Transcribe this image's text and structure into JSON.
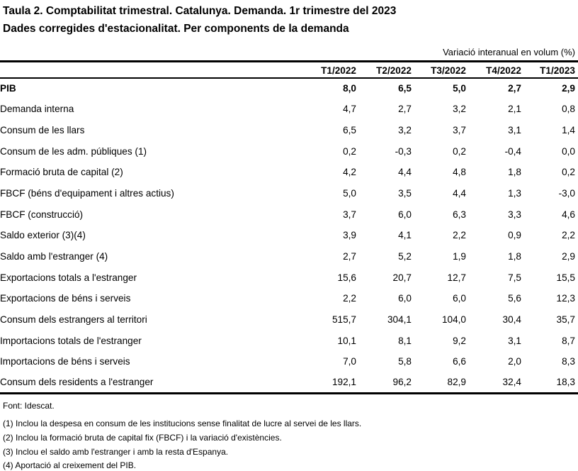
{
  "title": {
    "line1": "Taula 2. Comptabilitat trimestral. Catalunya. Demanda. 1r trimestre del 2023",
    "line2": "Dades corregides d'estacionalitat. Per components de la demanda"
  },
  "unit_label": "Variació interanual en volum (%)",
  "table": {
    "columns": [
      "T1/2022",
      "T2/2022",
      "T3/2022",
      "T4/2022",
      "T1/2023"
    ],
    "rows": [
      {
        "label": "PIB",
        "indent": 0,
        "bold": true,
        "values": [
          "8,0",
          "6,5",
          "5,0",
          "2,7",
          "2,9"
        ]
      },
      {
        "label": "Demanda interna",
        "indent": 1,
        "bold": false,
        "values": [
          "4,7",
          "2,7",
          "3,2",
          "2,1",
          "0,8"
        ]
      },
      {
        "label": "Consum de les llars",
        "indent": 2,
        "bold": false,
        "values": [
          "6,5",
          "3,2",
          "3,7",
          "3,1",
          "1,4"
        ]
      },
      {
        "label": "Consum de les adm. públiques (1)",
        "indent": 2,
        "bold": false,
        "values": [
          "0,2",
          "-0,3",
          "0,2",
          "-0,4",
          "0,0"
        ]
      },
      {
        "label": "Formació bruta de capital (2)",
        "indent": 2,
        "bold": false,
        "values": [
          "4,2",
          "4,4",
          "4,8",
          "1,8",
          "0,2"
        ]
      },
      {
        "label": "FBCF (béns d'equipament i altres actius)",
        "indent": 3,
        "bold": false,
        "values": [
          "5,0",
          "3,5",
          "4,4",
          "1,3",
          "-3,0"
        ]
      },
      {
        "label": "FBCF (construcció)",
        "indent": 3,
        "bold": false,
        "values": [
          "3,7",
          "6,0",
          "6,3",
          "3,3",
          "4,6"
        ]
      },
      {
        "label": "Saldo exterior (3)(4)",
        "indent": 1,
        "bold": false,
        "values": [
          "3,9",
          "4,1",
          "2,2",
          "0,9",
          "2,2"
        ]
      },
      {
        "label": "Saldo amb l'estranger (4)",
        "indent": 2,
        "bold": false,
        "values": [
          "2,7",
          "5,2",
          "1,9",
          "1,8",
          "2,9"
        ]
      },
      {
        "label": "Exportacions totals a l'estranger",
        "indent": 3,
        "bold": false,
        "values": [
          "15,6",
          "20,7",
          "12,7",
          "7,5",
          "15,5"
        ]
      },
      {
        "label": "Exportacions de béns i serveis",
        "indent": 4,
        "bold": false,
        "values": [
          "2,2",
          "6,0",
          "6,0",
          "5,6",
          "12,3"
        ]
      },
      {
        "label": "Consum dels estrangers al territori",
        "indent": 4,
        "bold": false,
        "values": [
          "515,7",
          "304,1",
          "104,0",
          "30,4",
          "35,7"
        ]
      },
      {
        "label": "Importacions totals de l'estranger",
        "indent": 3,
        "bold": false,
        "values": [
          "10,1",
          "8,1",
          "9,2",
          "3,1",
          "8,7"
        ]
      },
      {
        "label": "Importacions de béns i serveis",
        "indent": 4,
        "bold": false,
        "values": [
          "7,0",
          "5,8",
          "6,6",
          "2,0",
          "8,3"
        ]
      },
      {
        "label": "Consum dels residents a l'estranger",
        "indent": 4,
        "bold": false,
        "values": [
          "192,1",
          "96,2",
          "82,9",
          "32,4",
          "18,3"
        ]
      }
    ]
  },
  "footer": {
    "source": "Font: Idescat.",
    "notes": [
      "(1) Inclou la despesa en consum de les institucions sense finalitat de lucre al servei de les llars.",
      "(2) Inclou la formació bruta de capital fix (FBCF) i la variació d'existències.",
      "(3) Inclou el saldo amb l'estranger i amb la resta d'Espanya.",
      "(4) Aportació al creixement del PIB."
    ]
  },
  "colors": {
    "background": "#ffffff",
    "text": "#000000",
    "rule": "#000000"
  }
}
